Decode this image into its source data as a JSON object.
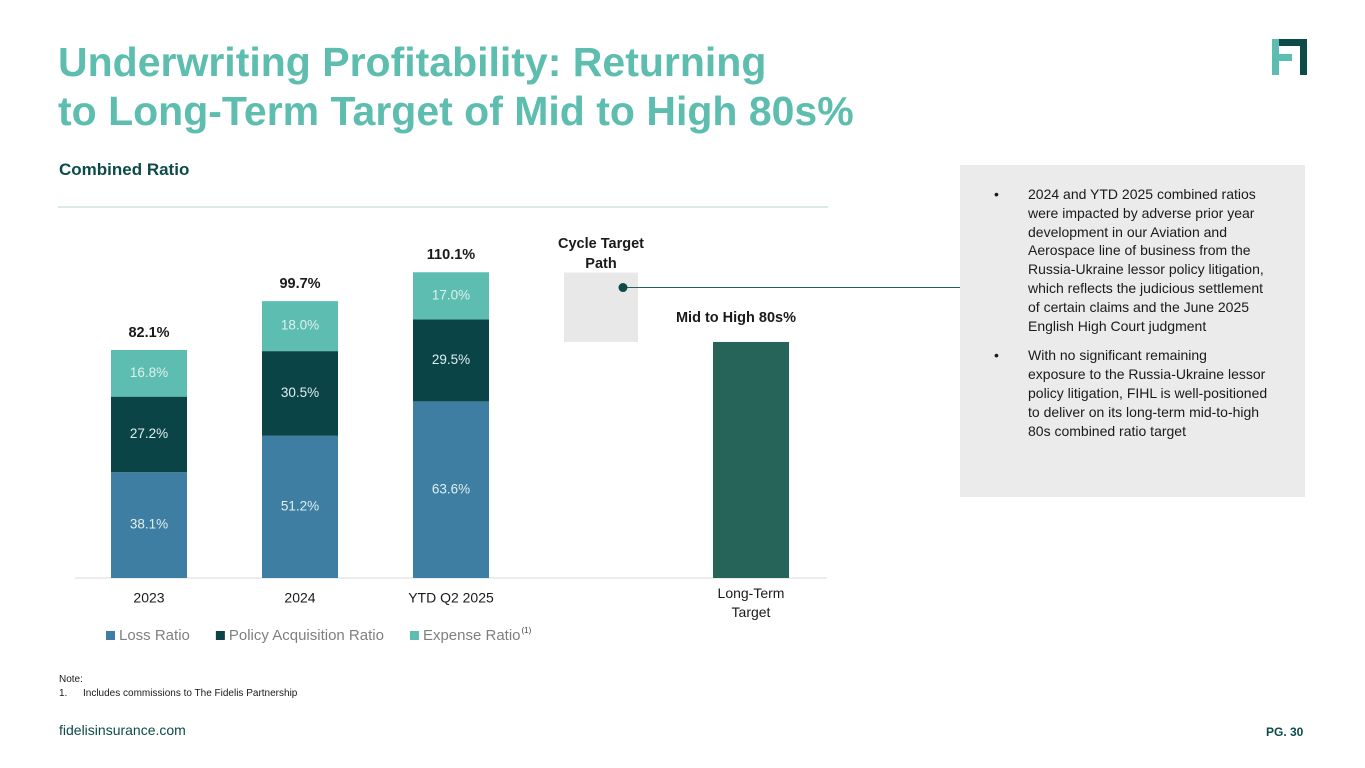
{
  "header": {
    "title_lines": [
      "Underwriting Profitability: Returning",
      "to Long-Term Target of Mid to High 80s%"
    ],
    "subtitle": "Combined Ratio"
  },
  "chart_data": {
    "type": "stacked-bar",
    "categories": [
      "2023",
      "2024",
      "YTD Q2 2025"
    ],
    "series": [
      {
        "name": "Loss Ratio",
        "color": "#3e7ea2",
        "values": [
          38.1,
          51.2,
          63.6
        ],
        "value_labels": [
          "38.1%",
          "51.2%",
          "63.6%"
        ]
      },
      {
        "name": "Policy Acquisition Ratio",
        "color": "#0a4446",
        "values": [
          27.2,
          30.5,
          29.5
        ],
        "value_labels": [
          "27.2%",
          "30.5%",
          "29.5%"
        ]
      },
      {
        "name": "Expense Ratio",
        "name_note": "(1)",
        "color": "#5ebdb1",
        "values": [
          16.8,
          18.0,
          17.0
        ],
        "value_labels": [
          "16.8%",
          "18.0%",
          "17.0%"
        ]
      }
    ],
    "totals": [
      82.1,
      99.7,
      110.1
    ],
    "total_labels": [
      "82.1%",
      "99.7%",
      "110.1%"
    ],
    "cycle_target": {
      "label": "Cycle Target Path",
      "range": [
        85,
        110
      ],
      "color": "#e8e8e8"
    },
    "target": {
      "category": "Long-Term Target",
      "value": 85,
      "value_label": "Mid to High 80s%",
      "color": "#266358"
    },
    "ylim": [
      0,
      120
    ]
  },
  "panel": {
    "bullets": [
      "2024 and YTD 2025 combined ratios were impacted by adverse prior year development in our Aviation and Aerospace line of business from the Russia-Ukraine lessor policy litigation, which reflects the judicious settlement of certain claims and the June 2025 English High Court judgment",
      "With no significant remaining exposure to the Russia-Ukraine lessor policy litigation, FIHL is well-positioned to deliver on its long-term mid-to-high 80s combined ratio target"
    ]
  },
  "note": {
    "heading": "Note:",
    "items": [
      {
        "number": "1.",
        "text": "Includes commissions to The Fidelis Partnership"
      }
    ]
  },
  "footer": {
    "url": "fidelisinsurance.com",
    "page": "PG. 30"
  }
}
